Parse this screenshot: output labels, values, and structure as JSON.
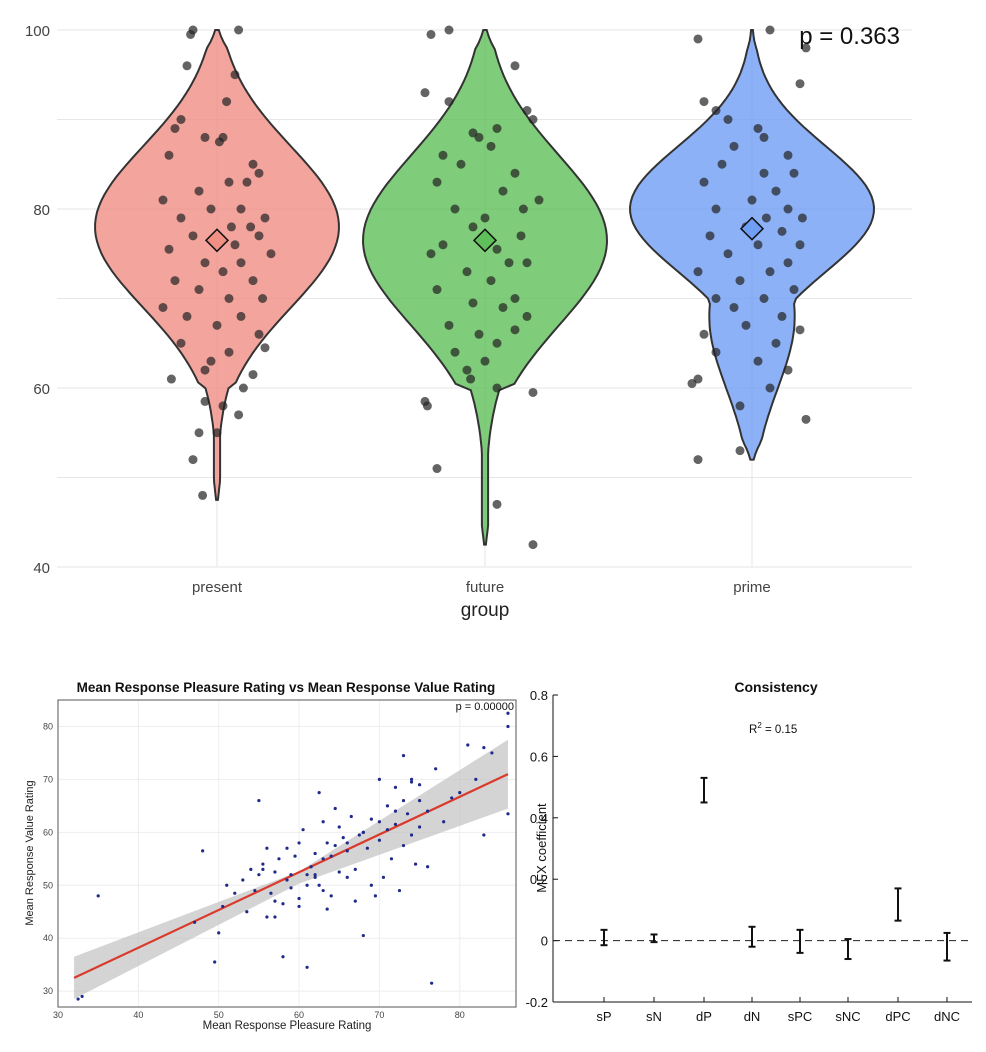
{
  "chart_data": [
    {
      "type": "violin",
      "xlabel": "group",
      "ylabel": "",
      "ylim": [
        40,
        100
      ],
      "yticks": [
        40,
        60,
        80,
        100
      ],
      "categories": [
        "present",
        "future",
        "prime"
      ],
      "annotation": "p = 0.363",
      "colors": {
        "present": "#f08f84",
        "future": "#5fbf5a",
        "prime": "#6f9ef5"
      },
      "grid": true,
      "series": [
        {
          "category": "present",
          "mean": 76.5,
          "min": 47.5,
          "max": 100,
          "mode": 78
        },
        {
          "category": "future",
          "mean": 76.5,
          "min": 42.5,
          "max": 100,
          "mode": 77
        },
        {
          "category": "prime",
          "mean": 77.8,
          "min": 52,
          "max": 100,
          "mode": 80
        }
      ],
      "points": {
        "present": [
          [
            100,
            -0.2
          ],
          [
            100,
            0.18
          ],
          [
            99.5,
            -0.22
          ],
          [
            96,
            -0.25
          ],
          [
            95,
            0.15
          ],
          [
            92,
            0.08
          ],
          [
            90,
            -0.3
          ],
          [
            89,
            -0.35
          ],
          [
            88,
            0.05
          ],
          [
            88,
            -0.1
          ],
          [
            87.5,
            0.02
          ],
          [
            86,
            -0.4
          ],
          [
            85,
            0.3
          ],
          [
            84,
            0.35
          ],
          [
            83,
            0.25
          ],
          [
            83,
            0.1
          ],
          [
            82,
            -0.15
          ],
          [
            81,
            -0.45
          ],
          [
            80,
            0.2
          ],
          [
            80,
            -0.05
          ],
          [
            79,
            0.4
          ],
          [
            79,
            -0.3
          ],
          [
            78,
            0.12
          ],
          [
            78,
            0.28
          ],
          [
            77,
            -0.2
          ],
          [
            77,
            0.35
          ],
          [
            76,
            0.15
          ],
          [
            75.5,
            -0.4
          ],
          [
            75,
            0.45
          ],
          [
            74,
            -0.1
          ],
          [
            74,
            0.2
          ],
          [
            73,
            0.05
          ],
          [
            72,
            -0.35
          ],
          [
            72,
            0.3
          ],
          [
            71,
            -0.15
          ],
          [
            70,
            0.1
          ],
          [
            70,
            0.38
          ],
          [
            69,
            -0.45
          ],
          [
            68,
            -0.25
          ],
          [
            68,
            0.2
          ],
          [
            67,
            0.0
          ],
          [
            66,
            0.35
          ],
          [
            65,
            -0.3
          ],
          [
            64.5,
            0.4
          ],
          [
            64,
            0.1
          ],
          [
            63,
            -0.05
          ],
          [
            62,
            -0.1
          ],
          [
            61.5,
            0.3
          ],
          [
            61,
            -0.38
          ],
          [
            60,
            0.22
          ],
          [
            58.5,
            -0.1
          ],
          [
            58,
            0.05
          ],
          [
            57,
            0.18
          ],
          [
            55,
            -0.15
          ],
          [
            55,
            0.0
          ],
          [
            52,
            -0.2
          ],
          [
            48,
            -0.12
          ]
        ],
        "future": [
          [
            100,
            -0.3
          ],
          [
            99.5,
            -0.45
          ],
          [
            96,
            0.25
          ],
          [
            93,
            -0.5
          ],
          [
            92,
            -0.3
          ],
          [
            91,
            0.35
          ],
          [
            90,
            0.4
          ],
          [
            89,
            0.1
          ],
          [
            88.5,
            -0.1
          ],
          [
            88,
            -0.05
          ],
          [
            87,
            0.05
          ],
          [
            86,
            -0.35
          ],
          [
            85,
            -0.2
          ],
          [
            84,
            0.25
          ],
          [
            83,
            -0.4
          ],
          [
            82,
            0.15
          ],
          [
            81,
            0.45
          ],
          [
            80,
            -0.25
          ],
          [
            80,
            0.32
          ],
          [
            79,
            0.0
          ],
          [
            78,
            -0.1
          ],
          [
            77,
            0.3
          ],
          [
            76,
            -0.35
          ],
          [
            75.5,
            0.1
          ],
          [
            75,
            -0.45
          ],
          [
            74,
            0.35
          ],
          [
            74,
            0.2
          ],
          [
            73,
            -0.15
          ],
          [
            72,
            0.05
          ],
          [
            71,
            -0.4
          ],
          [
            70,
            0.25
          ],
          [
            69.5,
            -0.1
          ],
          [
            69,
            0.15
          ],
          [
            68,
            0.35
          ],
          [
            67,
            -0.3
          ],
          [
            66.5,
            0.25
          ],
          [
            66,
            -0.05
          ],
          [
            65,
            0.1
          ],
          [
            64,
            -0.25
          ],
          [
            63,
            0.0
          ],
          [
            62,
            -0.15
          ],
          [
            61,
            -0.12
          ],
          [
            60,
            0.1
          ],
          [
            59.5,
            0.4
          ],
          [
            58.5,
            -0.5
          ],
          [
            58,
            -0.48
          ],
          [
            51,
            -0.4
          ],
          [
            47,
            0.1
          ],
          [
            42.5,
            0.4
          ]
        ],
        "prime": [
          [
            100,
            0.15
          ],
          [
            99,
            -0.45
          ],
          [
            98,
            0.45
          ],
          [
            94,
            0.4
          ],
          [
            92,
            -0.4
          ],
          [
            91,
            -0.3
          ],
          [
            90,
            -0.2
          ],
          [
            89,
            0.05
          ],
          [
            88,
            0.1
          ],
          [
            87,
            -0.15
          ],
          [
            86,
            0.3
          ],
          [
            85,
            -0.25
          ],
          [
            84,
            0.35
          ],
          [
            84,
            0.1
          ],
          [
            83,
            -0.4
          ],
          [
            82,
            0.2
          ],
          [
            81,
            0.0
          ],
          [
            80,
            0.3
          ],
          [
            80,
            -0.3
          ],
          [
            79,
            0.42
          ],
          [
            79,
            0.12
          ],
          [
            78,
            -0.05
          ],
          [
            77.5,
            0.25
          ],
          [
            77,
            -0.35
          ],
          [
            76,
            0.4
          ],
          [
            76,
            0.05
          ],
          [
            75,
            -0.2
          ],
          [
            74,
            0.3
          ],
          [
            73,
            -0.45
          ],
          [
            73,
            0.15
          ],
          [
            72,
            -0.1
          ],
          [
            71,
            0.35
          ],
          [
            70,
            -0.3
          ],
          [
            70,
            0.1
          ],
          [
            69,
            -0.15
          ],
          [
            68,
            0.25
          ],
          [
            67,
            -0.05
          ],
          [
            66.5,
            0.4
          ],
          [
            66,
            -0.4
          ],
          [
            65,
            0.2
          ],
          [
            64,
            -0.3
          ],
          [
            63,
            0.05
          ],
          [
            62,
            0.3
          ],
          [
            61,
            -0.45
          ],
          [
            60.5,
            -0.5
          ],
          [
            60,
            0.15
          ],
          [
            58,
            -0.1
          ],
          [
            56.5,
            0.45
          ],
          [
            53,
            -0.1
          ],
          [
            52,
            -0.45
          ]
        ]
      }
    },
    {
      "type": "scatter",
      "title": "Mean Response Pleasure Rating vs Mean Response Value Rating",
      "xlabel": "Mean Response Pleasure Rating",
      "ylabel": "Mean Response Value Rating",
      "annotation": "p = 0.00000",
      "xlim": [
        30,
        87
      ],
      "ylim": [
        27,
        85
      ],
      "xticks": [
        30,
        40,
        50,
        60,
        70,
        80
      ],
      "yticks": [
        30,
        40,
        50,
        60,
        70,
        80
      ],
      "fit_line": {
        "x": [
          32,
          86
        ],
        "y": [
          32.5,
          71
        ],
        "color": "#d93a2b"
      },
      "confidence_band": {
        "x": [
          32,
          60,
          86
        ],
        "lower": [
          28.5,
          50.3,
          64.5
        ],
        "upper": [
          36.5,
          52.6,
          77.5
        ]
      },
      "point_color": "#1f2a8a",
      "x": [
        32.5,
        35,
        47,
        48,
        49.5,
        50,
        50.5,
        51,
        52,
        53,
        53.5,
        54,
        54.5,
        55,
        55,
        55.5,
        56,
        56,
        56.5,
        57,
        57,
        57.5,
        58,
        58,
        58.5,
        58.5,
        59,
        59,
        59.5,
        60,
        60,
        60.5,
        61,
        61,
        61.5,
        62,
        62,
        62.5,
        62.5,
        63,
        63,
        63.5,
        63.5,
        64,
        64,
        64.5,
        64.5,
        65,
        65,
        65.5,
        66,
        66,
        66.5,
        67,
        67,
        67.5,
        68,
        68,
        68.5,
        69,
        69,
        69.5,
        70,
        70,
        70.5,
        71,
        71,
        71.5,
        72,
        72,
        72.5,
        73,
        73,
        73.5,
        74,
        74,
        74.5,
        75,
        75,
        76,
        76,
        76.5,
        77,
        78,
        79,
        80,
        81,
        82,
        83,
        83,
        84,
        86,
        86,
        86,
        33,
        55.5,
        57,
        60,
        61,
        62,
        63,
        66,
        68,
        70,
        72,
        73,
        74,
        75
      ],
      "y": [
        28.5,
        48,
        43,
        56.5,
        35.5,
        41,
        46,
        50,
        48.5,
        51,
        45,
        53,
        49,
        52,
        66,
        54,
        57,
        44,
        48.5,
        47,
        52.5,
        55,
        36.5,
        46.5,
        57,
        51,
        49.5,
        52,
        55.5,
        58,
        47.5,
        60.5,
        34.5,
        52,
        53.5,
        56,
        51.5,
        67.5,
        50,
        62,
        49,
        58,
        45.5,
        55.5,
        48,
        64.5,
        57.5,
        61,
        52.5,
        59,
        51.5,
        56.5,
        63,
        53,
        47,
        59.5,
        60,
        40.5,
        57,
        50,
        62.5,
        48,
        58.5,
        70,
        51.5,
        60.5,
        65,
        55,
        61.5,
        68.5,
        49,
        57.5,
        74.5,
        63.5,
        59.5,
        69.5,
        54,
        66,
        61,
        53.5,
        64,
        31.5,
        72,
        62,
        66.5,
        67.5,
        76.5,
        70,
        76,
        59.5,
        75,
        63.5,
        80,
        82.5,
        29,
        53,
        44,
        46,
        50,
        52,
        55,
        58,
        60,
        62,
        64,
        66,
        70,
        69
      ]
    },
    {
      "type": "errorbar",
      "title": "Consistency",
      "annotation": "R² = 0.15",
      "annotation_main": "R",
      "annotation_sup": "2",
      "annotation_tail": " = 0.15",
      "ylabel": "MFX coefficient",
      "ylim": [
        -0.2,
        0.8
      ],
      "yticks": [
        "-0.2",
        "0",
        "0.2",
        "0.4",
        "0.6",
        "0.8"
      ],
      "ytick_values": [
        -0.2,
        0,
        0.2,
        0.4,
        0.6,
        0.8
      ],
      "categories": [
        "sP",
        "sN",
        "dP",
        "dN",
        "sPC",
        "sNC",
        "dPC",
        "dNC"
      ],
      "lower": [
        -0.015,
        -0.005,
        0.45,
        -0.02,
        -0.04,
        -0.06,
        0.065,
        -0.065
      ],
      "upper": [
        0.035,
        0.02,
        0.53,
        0.045,
        0.035,
        0.005,
        0.17,
        0.025
      ],
      "reference_line": 0
    }
  ]
}
